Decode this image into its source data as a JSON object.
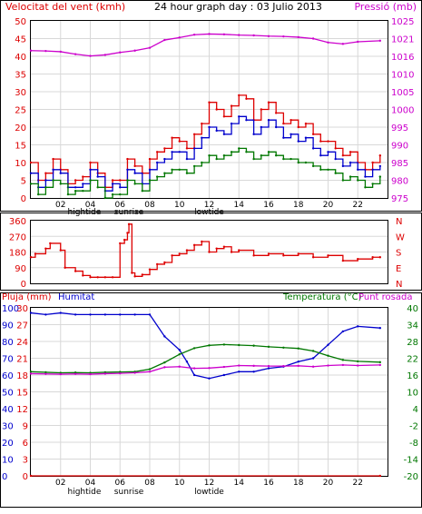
{
  "page": {
    "title": "24 hour graph day : 03 Julio 2013"
  },
  "colors": {
    "wind": "#dd0000",
    "gust": "#0000cc",
    "avg": "#007700",
    "pressure": "#cc00cc",
    "direction": "#dd0000",
    "humidity": "#0000cc",
    "temperature": "#007700",
    "dewpoint": "#cc00cc",
    "rain": "#dd0000"
  },
  "chart_data": [
    {
      "type": "line",
      "title": "24 hour graph day : 03 Julio 2013",
      "ylabel_left": "Velocitat del vent (kmh)",
      "ylabel_right": "Pressió (mb)",
      "ylim_left": [
        0,
        50
      ],
      "ylim_right": [
        975,
        1025
      ],
      "yticks_left": [
        "50",
        "45",
        "40",
        "35",
        "30",
        "25",
        "20",
        "15",
        "10",
        "5",
        "0"
      ],
      "yticks_right": [
        "1025",
        "1021",
        "1016",
        "1010",
        "1005",
        "1000",
        "995",
        "990",
        "985",
        "980",
        "975"
      ],
      "xticks": [
        "02",
        "04",
        "06",
        "08",
        "10",
        "12",
        "14",
        "16",
        "18",
        "20",
        "22"
      ],
      "markers": [
        "hightide",
        "sunrise",
        "lowtide"
      ],
      "series": [
        {
          "key": "pressure",
          "hours": [
            0,
            1,
            2,
            3,
            4,
            5,
            6,
            7,
            8,
            9,
            10,
            11,
            12,
            13,
            14,
            15,
            16,
            17,
            18,
            19,
            20,
            21,
            22,
            23.5
          ],
          "values": [
            1016.6,
            1016.5,
            1016.3,
            1015.6,
            1015.1,
            1015.4,
            1016.1,
            1016.6,
            1017.4,
            1019.6,
            1020.3,
            1021.1,
            1021.3,
            1021.2,
            1021.0,
            1020.9,
            1020.7,
            1020.6,
            1020.4,
            1020.0,
            1018.9,
            1018.5,
            1019.1,
            1019.4
          ]
        },
        {
          "key": "wind",
          "hours": [
            0,
            0.5,
            1,
            1.5,
            2,
            2.5,
            3,
            3.5,
            4,
            4.5,
            5,
            5.5,
            6,
            6.5,
            7,
            7.5,
            8,
            8.5,
            9,
            9.5,
            10,
            10.5,
            11,
            11.5,
            12,
            12.5,
            13,
            13.5,
            14,
            14.5,
            15,
            15.5,
            16,
            16.5,
            17,
            17.5,
            18,
            18.5,
            19,
            19.5,
            20,
            20.5,
            21,
            21.5,
            22,
            22.5,
            23,
            23.5
          ],
          "values": [
            10,
            5,
            7,
            11,
            8,
            4,
            5,
            6,
            10,
            7,
            3,
            5,
            5,
            11,
            9,
            7,
            11,
            13,
            14,
            17,
            16,
            14,
            18,
            21,
            27,
            25,
            23,
            26,
            29,
            28,
            22,
            25,
            27,
            24,
            21,
            22,
            20,
            21,
            18,
            16,
            16,
            14,
            12,
            13,
            10,
            8,
            10,
            12
          ]
        },
        {
          "key": "gust",
          "hours": [
            0,
            0.5,
            1,
            1.5,
            2,
            2.5,
            3,
            3.5,
            4,
            4.5,
            5,
            5.5,
            6,
            6.5,
            7,
            7.5,
            8,
            8.5,
            9,
            9.5,
            10,
            10.5,
            11,
            11.5,
            12,
            12.5,
            13,
            13.5,
            14,
            14.5,
            15,
            15.5,
            16,
            16.5,
            17,
            17.5,
            18,
            18.5,
            19,
            19.5,
            20,
            20.5,
            21,
            21.5,
            22,
            22.5,
            23,
            23.5
          ],
          "values": [
            7,
            3,
            5,
            8,
            7,
            3,
            3,
            4,
            8,
            6,
            2,
            4,
            3,
            8,
            7,
            4,
            8,
            10,
            11,
            13,
            13,
            11,
            14,
            17,
            20,
            19,
            18,
            21,
            23,
            22,
            18,
            20,
            22,
            20,
            17,
            18,
            16,
            17,
            14,
            12,
            13,
            11,
            9,
            10,
            8,
            6,
            8,
            9
          ]
        },
        {
          "key": "avg",
          "hours": [
            0,
            0.5,
            1,
            1.5,
            2,
            2.5,
            3,
            3.5,
            4,
            4.5,
            5,
            5.5,
            6,
            6.5,
            7,
            7.5,
            8,
            8.5,
            9,
            9.5,
            10,
            10.5,
            11,
            11.5,
            12,
            12.5,
            13,
            13.5,
            14,
            14.5,
            15,
            15.5,
            16,
            16.5,
            17,
            17.5,
            18,
            18.5,
            19,
            19.5,
            20,
            20.5,
            21,
            21.5,
            22,
            22.5,
            23,
            23.5
          ],
          "values": [
            4,
            1,
            3,
            5,
            4,
            1,
            2,
            2,
            5,
            3,
            0,
            1,
            1,
            5,
            4,
            2,
            5,
            6,
            7,
            8,
            8,
            7,
            9,
            10,
            12,
            11,
            12,
            13,
            14,
            13,
            11,
            12,
            13,
            12,
            11,
            11,
            10,
            10,
            9,
            8,
            8,
            7,
            5,
            6,
            5,
            3,
            4,
            6
          ]
        }
      ]
    },
    {
      "type": "line",
      "ylabel": "Direcció",
      "yticks_left": [
        "360",
        "270",
        "180",
        "90",
        "0"
      ],
      "yticks_right": [
        "N",
        "W",
        "S",
        "E",
        "N"
      ],
      "ylim": [
        0,
        360
      ],
      "xticks": [],
      "series": [
        {
          "key": "direction",
          "hours": [
            0,
            0.3,
            1,
            1.3,
            2,
            2.3,
            3,
            3.5,
            4,
            4.5,
            5,
            5.5,
            6,
            6.3,
            6.5,
            6.6,
            6.8,
            7,
            7.5,
            8,
            8.5,
            9,
            9.5,
            10,
            10.5,
            11,
            11.5,
            12,
            12.5,
            13,
            13.5,
            14,
            15,
            16,
            17,
            18,
            19,
            20,
            21,
            22,
            23,
            23.5
          ],
          "values": [
            150,
            170,
            200,
            230,
            190,
            90,
            70,
            45,
            35,
            35,
            35,
            35,
            230,
            250,
            290,
            340,
            60,
            40,
            50,
            80,
            110,
            120,
            160,
            170,
            190,
            220,
            240,
            180,
            200,
            210,
            180,
            190,
            160,
            170,
            160,
            170,
            150,
            160,
            130,
            140,
            150,
            150
          ]
        }
      ]
    },
    {
      "type": "line",
      "ylabel_left": "Pluja (mm)",
      "ylabel_left2": "Humitat",
      "ylabel_right": "Temperatura (°C)",
      "ylabel_right2": "Punt rosada",
      "ylim_left": [
        0,
        100
      ],
      "ylim_left_rain": [
        0,
        30
      ],
      "ylim_right": [
        -20,
        40
      ],
      "yticks_left_hum": [
        "100",
        "90",
        "80",
        "70",
        "60",
        "50",
        "40",
        "30",
        "20",
        "10",
        "0"
      ],
      "yticks_left_rain": [
        "30",
        "27",
        "24",
        "21",
        "18",
        "15",
        "12",
        "9",
        "6",
        "3",
        "0"
      ],
      "yticks_right": [
        "40",
        "34",
        "28",
        "22",
        "16",
        "10",
        "4",
        "-2",
        "-8",
        "-14",
        "-20"
      ],
      "xticks": [
        "02",
        "04",
        "06",
        "08",
        "10",
        "12",
        "14",
        "16",
        "18",
        "20",
        "22"
      ],
      "markers": [
        "hightide",
        "sunrise",
        "lowtide"
      ],
      "series": [
        {
          "key": "humidity",
          "hours": [
            0,
            1,
            2,
            3,
            4,
            5,
            6,
            7,
            8,
            9,
            10,
            10.5,
            11,
            12,
            13,
            14,
            15,
            16,
            17,
            18,
            19,
            20,
            21,
            22,
            23.5
          ],
          "values": [
            97,
            96,
            97,
            96,
            96,
            96,
            96,
            96,
            96,
            83,
            75,
            68,
            60,
            58,
            60,
            62,
            62,
            64,
            65,
            68,
            70,
            78,
            86,
            89,
            88
          ]
        },
        {
          "key": "temperature",
          "hours": [
            0,
            1,
            2,
            3,
            4,
            5,
            6,
            7,
            8,
            9,
            10,
            11,
            12,
            13,
            14,
            15,
            16,
            17,
            18,
            19,
            20,
            21,
            22,
            23.5
          ],
          "values": [
            17.2,
            17.0,
            16.8,
            16.9,
            16.8,
            17.0,
            17.1,
            17.2,
            18.1,
            20.5,
            23.4,
            25.6,
            26.6,
            26.9,
            26.7,
            26.5,
            26.1,
            25.8,
            25.5,
            24.6,
            22.9,
            21.4,
            20.9,
            20.6
          ]
        },
        {
          "key": "dewpoint",
          "hours": [
            0,
            1,
            2,
            3,
            4,
            5,
            6,
            7,
            8,
            9,
            10,
            11,
            12,
            13,
            14,
            15,
            16,
            17,
            18,
            19,
            20,
            21,
            22,
            23.5
          ],
          "values": [
            16.5,
            16.4,
            16.3,
            16.4,
            16.3,
            16.5,
            16.6,
            16.8,
            17.2,
            18.8,
            19.0,
            18.4,
            18.5,
            18.9,
            19.4,
            19.3,
            19.2,
            19.2,
            19.3,
            19.0,
            19.4,
            19.6,
            19.4,
            19.6
          ]
        },
        {
          "key": "rain",
          "hours": [
            0,
            23.5
          ],
          "values": [
            0,
            0
          ]
        }
      ]
    }
  ]
}
